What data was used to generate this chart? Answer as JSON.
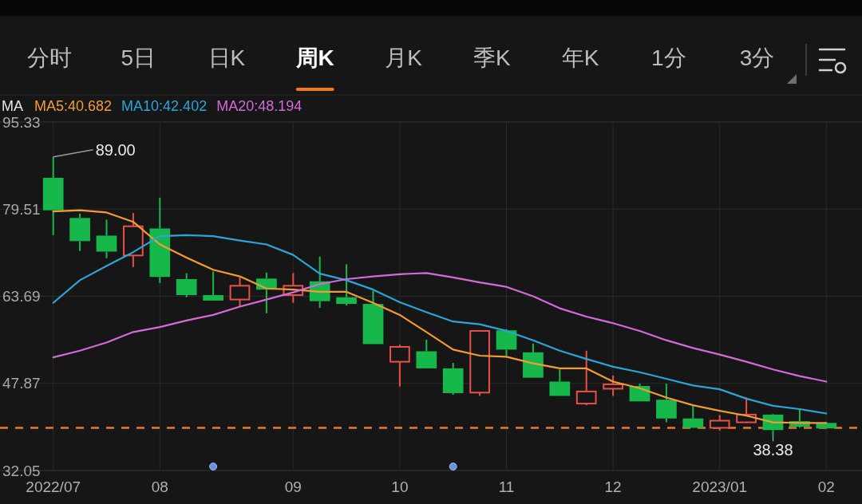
{
  "chart_data": {
    "type": "candlestick",
    "categories": [
      "2022/07",
      null,
      null,
      null,
      "08",
      null,
      null,
      null,
      null,
      "09",
      null,
      null,
      null,
      "10",
      null,
      null,
      null,
      "11",
      null,
      null,
      null,
      "12",
      null,
      null,
      null,
      "2023/01",
      null,
      null,
      null,
      "02"
    ],
    "ohlc": [
      [
        85.2,
        89.0,
        74.8,
        79.3
      ],
      [
        77.9,
        78.7,
        71.9,
        73.7
      ],
      [
        74.7,
        77.6,
        70.6,
        71.8
      ],
      [
        71.1,
        78.8,
        69.0,
        76.4
      ],
      [
        76.0,
        81.6,
        66.1,
        67.2
      ],
      [
        66.8,
        67.9,
        63.5,
        63.9
      ],
      [
        63.9,
        68.2,
        62.9,
        62.9
      ],
      [
        63.1,
        67.1,
        61.8,
        65.6
      ],
      [
        66.9,
        68.0,
        60.6,
        64.9
      ],
      [
        63.9,
        67.9,
        62.5,
        65.6
      ],
      [
        66.4,
        70.9,
        61.6,
        62.8
      ],
      [
        63.5,
        69.5,
        62.0,
        62.3
      ],
      [
        62.3,
        64.7,
        55.0,
        55.0
      ],
      [
        51.8,
        54.9,
        47.3,
        54.5
      ],
      [
        53.7,
        55.8,
        50.6,
        50.6
      ],
      [
        50.6,
        51.6,
        45.8,
        46.1
      ],
      [
        46.2,
        57.4,
        45.6,
        57.4
      ],
      [
        57.5,
        57.7,
        52.9,
        54.0
      ],
      [
        53.5,
        55.1,
        48.9,
        48.9
      ],
      [
        48.2,
        50.4,
        45.6,
        45.6
      ],
      [
        44.2,
        53.8,
        43.9,
        46.4
      ],
      [
        46.9,
        49.3,
        45.6,
        47.7
      ],
      [
        47.4,
        47.8,
        44.6,
        44.6
      ],
      [
        44.9,
        47.8,
        40.8,
        41.5
      ],
      [
        41.5,
        43.9,
        39.8,
        39.8
      ],
      [
        39.8,
        42.1,
        39.3,
        41.1
      ],
      [
        40.8,
        45.3,
        40.7,
        42.2
      ],
      [
        42.2,
        42.3,
        38.38,
        39.4
      ],
      [
        41.0,
        43.3,
        39.8,
        40.0
      ],
      [
        40.7,
        40.7,
        39.7,
        39.7
      ]
    ],
    "colors": [
      "#16b84c",
      "#16b84c",
      "#16b84c",
      "#e8504a",
      "#16b84c",
      "#16b84c",
      "#16b84c",
      "#e8504a",
      "#16b84c",
      "#e8504a",
      "#16b84c",
      "#16b84c",
      "#16b84c",
      "#e8504a",
      "#16b84c",
      "#16b84c",
      "#e8504a",
      "#16b84c",
      "#16b84c",
      "#16b84c",
      "#e8504a",
      "#e8504a",
      "#16b84c",
      "#16b84c",
      "#16b84c",
      "#e8504a",
      "#e8504a",
      "#16b84c",
      "#16b84c",
      "#16b84c"
    ],
    "series": [
      {
        "name": "MA5:40.682",
        "type": "line",
        "color": "#f39c33",
        "values": [
          79.1,
          79.3,
          78.9,
          77.2,
          73.1,
          70.7,
          68.5,
          67.3,
          65.1,
          64.9,
          64.5,
          64.5,
          62.5,
          60.3,
          57.2,
          54.0,
          52.9,
          52.7,
          51.5,
          50.6,
          50.6,
          48.2,
          47.0,
          45.3,
          43.9,
          42.9,
          42.0,
          40.8,
          40.7,
          40.682
        ]
      },
      {
        "name": "MA10:42.402",
        "type": "line",
        "color": "#2aa5d8",
        "values": [
          62.5,
          66.6,
          69.2,
          71.7,
          74.6,
          74.8,
          74.6,
          73.8,
          73.1,
          71.2,
          67.8,
          66.6,
          64.9,
          62.6,
          60.8,
          59.1,
          58.6,
          57.4,
          55.7,
          53.8,
          52.3,
          50.9,
          49.9,
          48.7,
          47.5,
          46.8,
          45.1,
          43.8,
          43.2,
          42.402
        ]
      },
      {
        "name": "MA20:48.194",
        "type": "line",
        "color": "#d36ad6",
        "values": [
          52.6,
          53.8,
          55.3,
          57.2,
          58.1,
          59.3,
          60.3,
          61.8,
          63.1,
          64.4,
          65.9,
          66.8,
          67.3,
          67.7,
          67.9,
          67.1,
          66.2,
          65.4,
          63.7,
          61.5,
          60.0,
          58.8,
          57.4,
          55.7,
          54.3,
          53.1,
          51.8,
          50.4,
          49.2,
          48.194
        ]
      }
    ],
    "ylim": [
      32.05,
      95.33
    ],
    "yticks": [
      95.33,
      79.51,
      63.69,
      47.87,
      32.05
    ],
    "grid": true,
    "legend": "top left",
    "legend_title": "MA",
    "ref_lines": [
      {
        "axis": "y",
        "value": 39.8,
        "color": "#e87a2c",
        "line_style": "dashed"
      }
    ],
    "annotations": [
      "分时",
      "5日",
      "日K",
      "周K",
      "月K",
      "季K",
      "年K",
      "1分",
      "3分",
      {
        "text": "89.00",
        "x": "2022/07",
        "y": 89.0
      },
      {
        "text": "38.38",
        "y": 38.38
      }
    ]
  }
}
